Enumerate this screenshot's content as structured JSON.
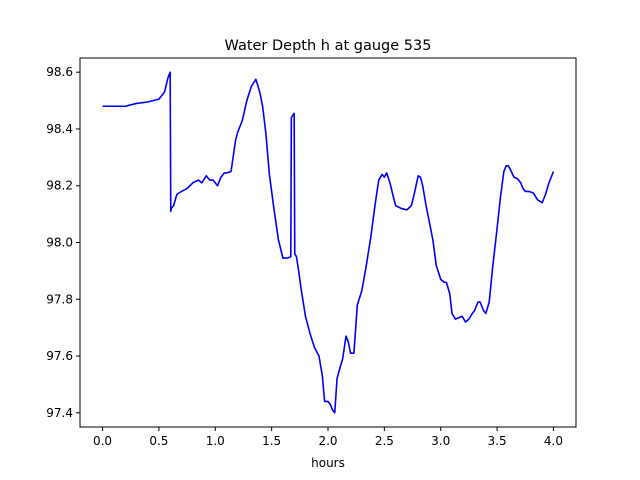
{
  "chart_data": {
    "type": "line",
    "title": "Water Depth h at gauge 535",
    "xlabel": "hours",
    "ylabel": "",
    "xlim": [
      -0.2,
      4.2
    ],
    "ylim": [
      97.35,
      98.65
    ],
    "xticks": [
      0.0,
      0.5,
      1.0,
      1.5,
      2.0,
      2.5,
      3.0,
      3.5,
      4.0
    ],
    "xtick_labels": [
      "0.0",
      "0.5",
      "1.0",
      "1.5",
      "2.0",
      "2.5",
      "3.0",
      "3.5",
      "4.0"
    ],
    "yticks": [
      97.4,
      97.6,
      97.8,
      98.0,
      98.2,
      98.4,
      98.6
    ],
    "ytick_labels": [
      "97.4",
      "97.6",
      "97.8",
      "98.0",
      "98.2",
      "98.4",
      "98.6"
    ],
    "grid": false,
    "legend": "none",
    "line_color": "#0000ff",
    "series": [
      {
        "x": [
          0.0,
          0.1,
          0.2,
          0.3,
          0.4,
          0.5,
          0.55,
          0.58,
          0.6,
          0.605,
          0.61,
          0.63,
          0.66,
          0.7,
          0.75,
          0.8,
          0.85,
          0.88,
          0.92,
          0.95,
          0.98,
          1.02,
          1.05,
          1.08,
          1.1,
          1.14,
          1.18,
          1.2,
          1.24,
          1.28,
          1.32,
          1.36,
          1.38,
          1.4,
          1.42,
          1.45,
          1.48,
          1.52,
          1.56,
          1.6,
          1.64,
          1.67,
          1.675,
          1.7,
          1.705,
          1.72,
          1.74,
          1.76,
          1.78,
          1.8,
          1.84,
          1.88,
          1.92,
          1.95,
          1.97,
          2.0,
          2.02,
          2.04,
          2.06,
          2.08,
          2.1,
          2.13,
          2.16,
          2.18,
          2.2,
          2.23,
          2.26,
          2.3,
          2.34,
          2.38,
          2.42,
          2.45,
          2.48,
          2.5,
          2.52,
          2.55,
          2.58,
          2.6,
          2.65,
          2.7,
          2.74,
          2.77,
          2.8,
          2.82,
          2.84,
          2.87,
          2.9,
          2.93,
          2.96,
          3.0,
          3.03,
          3.05,
          3.08,
          3.1,
          3.13,
          3.16,
          3.19,
          3.22,
          3.25,
          3.28,
          3.3,
          3.33,
          3.35,
          3.38,
          3.4,
          3.43,
          3.46,
          3.5,
          3.53,
          3.56,
          3.58,
          3.6,
          3.62,
          3.65,
          3.68,
          3.71,
          3.73,
          3.75,
          3.78,
          3.82,
          3.86,
          3.9,
          3.93,
          3.96,
          3.99,
          4.0
        ],
        "y": [
          98.48,
          98.48,
          98.48,
          98.49,
          98.495,
          98.505,
          98.53,
          98.58,
          98.6,
          98.11,
          98.12,
          98.13,
          98.17,
          98.18,
          98.19,
          98.21,
          98.22,
          98.21,
          98.235,
          98.22,
          98.22,
          98.2,
          98.23,
          98.245,
          98.245,
          98.25,
          98.36,
          98.39,
          98.43,
          98.5,
          98.55,
          98.575,
          98.55,
          98.52,
          98.48,
          98.38,
          98.24,
          98.12,
          98.01,
          97.945,
          97.945,
          97.95,
          98.44,
          98.455,
          97.96,
          97.95,
          97.9,
          97.84,
          97.79,
          97.74,
          97.68,
          97.63,
          97.6,
          97.53,
          97.44,
          97.44,
          97.43,
          97.41,
          97.4,
          97.52,
          97.55,
          97.59,
          97.67,
          97.65,
          97.61,
          97.61,
          97.78,
          97.83,
          97.92,
          98.02,
          98.14,
          98.22,
          98.24,
          98.23,
          98.245,
          98.21,
          98.16,
          98.13,
          98.12,
          98.115,
          98.13,
          98.18,
          98.235,
          98.23,
          98.2,
          98.13,
          98.07,
          98.01,
          97.92,
          97.87,
          97.86,
          97.86,
          97.82,
          97.75,
          97.73,
          97.735,
          97.74,
          97.72,
          97.73,
          97.75,
          97.76,
          97.79,
          97.79,
          97.76,
          97.75,
          97.79,
          97.91,
          98.05,
          98.16,
          98.25,
          98.27,
          98.27,
          98.255,
          98.23,
          98.225,
          98.21,
          98.19,
          98.18,
          98.18,
          98.175,
          98.15,
          98.14,
          98.17,
          98.21,
          98.24,
          98.25
        ]
      }
    ]
  }
}
